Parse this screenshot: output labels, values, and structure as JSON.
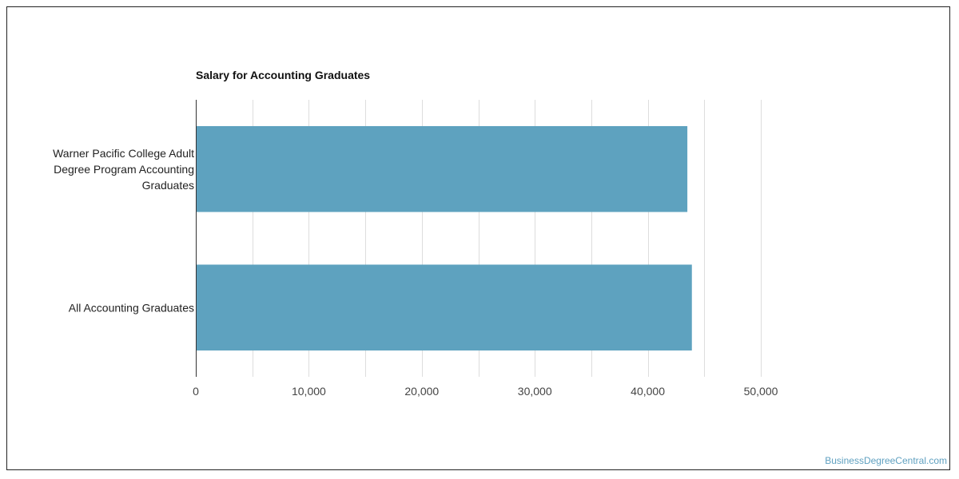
{
  "watermark": "BusinessDegreeCentral.com",
  "colors": {
    "bar": "#5ea2bf",
    "grid": "#dddddd",
    "axis": "#333333"
  },
  "chart_data": {
    "type": "bar",
    "orientation": "horizontal",
    "title": "Salary for Accounting Graduates",
    "xlabel": "",
    "ylabel": "",
    "categories": [
      [
        "Warner Pacific College Adult",
        "Degree Program Accounting",
        "Graduates"
      ],
      [
        "All Accounting Graduates"
      ]
    ],
    "values": [
      43500,
      43900
    ],
    "xlim": [
      0,
      50000
    ],
    "ticks": [
      0,
      10000,
      20000,
      30000,
      40000,
      50000
    ],
    "tick_labels": [
      "0",
      "10,000",
      "20,000",
      "30,000",
      "40,000",
      "50,000"
    ],
    "grid": true,
    "legend": "none"
  }
}
